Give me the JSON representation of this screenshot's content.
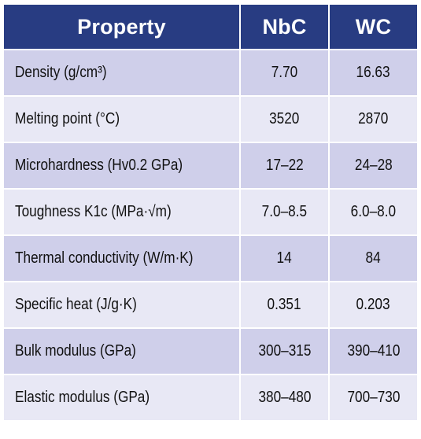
{
  "colors": {
    "header_bg": "#283C82",
    "header_text": "#FFFFFF",
    "row_odd_bg": "#CFCFEA",
    "row_even_bg": "#E8E8F5",
    "cell_text": "#111111",
    "border": "#FFFFFF"
  },
  "table": {
    "headers": [
      "Property",
      "NbC",
      "WC"
    ],
    "rows": [
      {
        "property": "Density (g/cm³)",
        "nbc": "7.70",
        "wc": "16.63"
      },
      {
        "property": "Melting point (°C)",
        "nbc": "3520",
        "wc": "2870"
      },
      {
        "property": "Microhardness (Hv0.2 GPa)",
        "nbc": "17–22",
        "wc": "24–28"
      },
      {
        "property": "Toughness K1c (MPa·√m)",
        "nbc": "7.0–8.5",
        "wc": "6.0–8.0"
      },
      {
        "property": "Thermal conductivity (W/m·K)",
        "nbc": "14",
        "wc": "84"
      },
      {
        "property": "Specific heat (J/g·K)",
        "nbc": "0.351",
        "wc": "0.203"
      },
      {
        "property": "Bulk modulus (GPa)",
        "nbc": "300–315",
        "wc": "390–410"
      },
      {
        "property": "Elastic modulus (GPa)",
        "nbc": "380–480",
        "wc": "700–730"
      }
    ]
  }
}
